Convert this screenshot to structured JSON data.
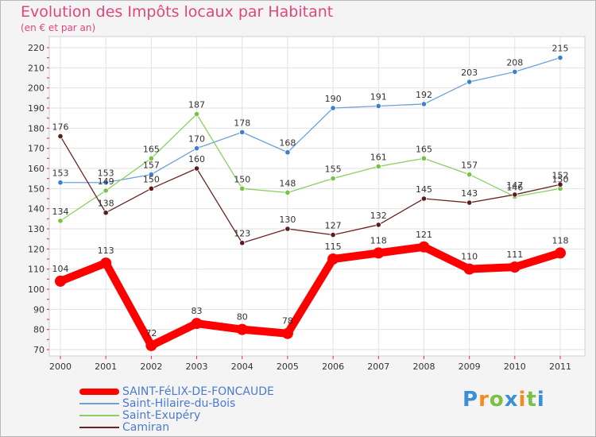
{
  "title": "Evolution des Impôts locaux par Habitant",
  "subtitle": "(en € et par an)",
  "logo": {
    "text": "Proxiti",
    "letters": [
      "P",
      "r",
      "o",
      "x",
      "i",
      "t",
      "i"
    ],
    "colors": [
      "#3b8fd6",
      "#f28c1e",
      "#79c043",
      "#3b8fd6",
      "#f28c1e",
      "#79c043",
      "#3b8fd6"
    ]
  },
  "chart_data": {
    "type": "line",
    "title": "Evolution des Impôts locaux par Habitant",
    "subtitle": "(en € et par an)",
    "xlabel": "",
    "ylabel": "",
    "ylim": [
      70,
      220
    ],
    "yticks": [
      70,
      80,
      90,
      100,
      110,
      120,
      130,
      140,
      150,
      160,
      170,
      180,
      190,
      200,
      210,
      220
    ],
    "grid": true,
    "legend": "bottom-left",
    "categories": [
      "2000",
      "2001",
      "2002",
      "2003",
      "2004",
      "2005",
      "2006",
      "2007",
      "2008",
      "2009",
      "2010",
      "2011"
    ],
    "series": [
      {
        "name": "SAINT-FéLIX-DE-FONCAUDE",
        "color": "#ff0000",
        "values": [
          104,
          113,
          72,
          83,
          80,
          78,
          115,
          118,
          121,
          110,
          111,
          118
        ]
      },
      {
        "name": "Saint-Hilaire-du-Bois",
        "color": "#6fa0d8",
        "values": [
          153,
          153,
          157,
          170,
          178,
          168,
          190,
          191,
          192,
          203,
          208,
          215
        ]
      },
      {
        "name": "Saint-Exupéry",
        "color": "#88d160",
        "values": [
          134,
          149,
          165,
          187,
          150,
          148,
          155,
          161,
          165,
          157,
          146,
          150
        ]
      },
      {
        "name": "Camiran",
        "color": "#6b2424",
        "values": [
          176,
          138,
          150,
          160,
          123,
          130,
          127,
          132,
          145,
          143,
          147,
          152
        ]
      }
    ]
  }
}
